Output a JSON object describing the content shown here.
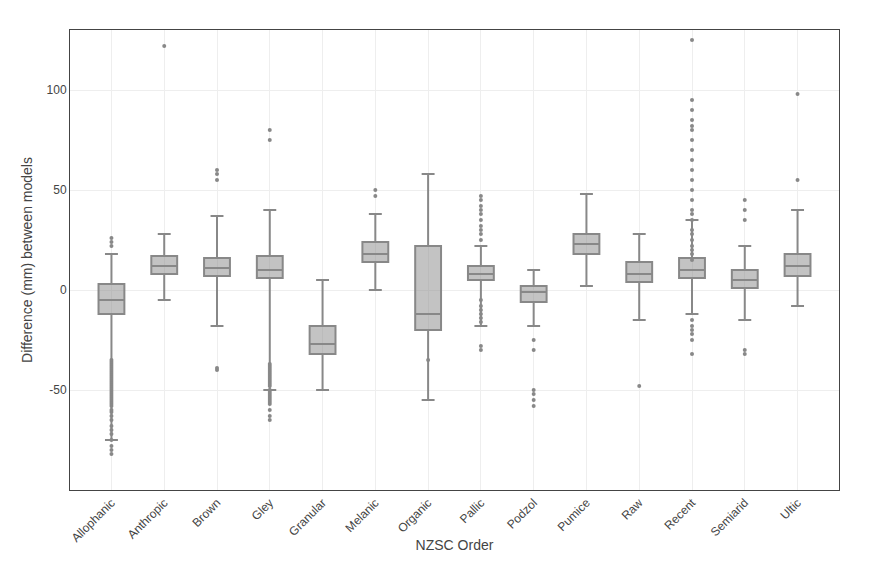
{
  "chart_data": {
    "type": "box",
    "xlabel": "NZSC Order",
    "ylabel": "Difference (mm) between models",
    "categories": [
      "Allophanic",
      "Anthropic",
      "Brown",
      "Gley",
      "Granular",
      "Melanic",
      "Organic",
      "Pallic",
      "Podzol",
      "Pumice",
      "Raw",
      "Recent",
      "Semiarid",
      "Ultic"
    ],
    "boxes": [
      {
        "q1": -12,
        "median": -5,
        "q3": 3,
        "whisker_low": -75,
        "whisker_high": 18,
        "fliers": [
          -82,
          -80,
          -78,
          -75,
          -72,
          -70,
          -68,
          -65,
          -63,
          -61,
          -60,
          -58,
          -57,
          -56,
          -55,
          -54,
          -53,
          -52,
          -51,
          -50,
          -49,
          -48,
          -47,
          -46,
          -45,
          -44,
          -43,
          -42,
          -41,
          -40,
          -39,
          -38,
          -37,
          -36,
          -35,
          22,
          24,
          26
        ]
      },
      {
        "q1": 8,
        "median": 12,
        "q3": 17,
        "whisker_low": -5,
        "whisker_high": 28,
        "fliers": [
          122
        ]
      },
      {
        "q1": 7,
        "median": 11,
        "q3": 16,
        "whisker_low": -18,
        "whisker_high": 37,
        "fliers": [
          -39,
          -40,
          55,
          58,
          60
        ]
      },
      {
        "q1": 6,
        "median": 10,
        "q3": 17,
        "whisker_low": -50,
        "whisker_high": 40,
        "fliers": [
          -63,
          -65,
          -60,
          -57,
          -56,
          -55,
          -54,
          -53,
          -52,
          -51,
          -50,
          -48,
          -47,
          -46,
          -45,
          -44,
          -43,
          -42,
          -41,
          -40,
          -39,
          -38,
          -37,
          75,
          80
        ]
      },
      {
        "q1": -32,
        "median": -27,
        "q3": -18,
        "whisker_low": -50,
        "whisker_high": 5,
        "fliers": []
      },
      {
        "q1": 14,
        "median": 18,
        "q3": 24,
        "whisker_low": 0,
        "whisker_high": 38,
        "fliers": [
          47,
          50
        ]
      },
      {
        "q1": -20,
        "median": -12,
        "q3": 22,
        "whisker_low": -55,
        "whisker_high": 58,
        "fliers": [
          -35
        ]
      },
      {
        "q1": 5,
        "median": 8,
        "q3": 12,
        "whisker_low": -18,
        "whisker_high": 22,
        "fliers": [
          -28,
          -30,
          38,
          40,
          42,
          45,
          47,
          -10,
          -12,
          -14,
          -16,
          -5,
          -8,
          25,
          28,
          30,
          32,
          35
        ]
      },
      {
        "q1": -6,
        "median": -1,
        "q3": 2,
        "whisker_low": -18,
        "whisker_high": 10,
        "fliers": [
          -52,
          -58,
          -55,
          -50,
          -30,
          -25
        ]
      },
      {
        "q1": 18,
        "median": 23,
        "q3": 28,
        "whisker_low": 2,
        "whisker_high": 48,
        "fliers": []
      },
      {
        "q1": 4,
        "median": 8,
        "q3": 14,
        "whisker_low": -15,
        "whisker_high": 28,
        "fliers": [
          -48
        ]
      },
      {
        "q1": 6,
        "median": 10,
        "q3": 16,
        "whisker_low": -12,
        "whisker_high": 35,
        "fliers": [
          -32,
          45,
          50,
          55,
          60,
          65,
          70,
          75,
          80,
          82,
          85,
          90,
          95,
          125,
          40,
          38,
          35,
          30,
          28,
          25,
          22,
          20,
          18,
          15,
          -15,
          -18,
          -20,
          -22,
          -25
        ]
      },
      {
        "q1": 1,
        "median": 5,
        "q3": 10,
        "whisker_low": -15,
        "whisker_high": 22,
        "fliers": [
          -30,
          -32,
          35,
          40,
          45
        ]
      },
      {
        "q1": 7,
        "median": 12,
        "q3": 18,
        "whisker_low": -8,
        "whisker_high": 40,
        "fliers": [
          55,
          98
        ]
      }
    ],
    "ylim": [
      -100,
      130
    ],
    "yticks": [
      -50,
      0,
      50,
      100
    ],
    "grid": true,
    "color": "#888888"
  }
}
